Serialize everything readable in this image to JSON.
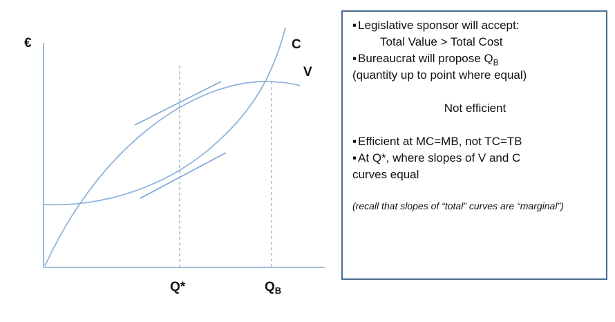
{
  "diagram": {
    "y_axis_label": "€",
    "cost_curve_label": "C",
    "value_curve_label": "V",
    "q_star_label": "Q*",
    "qb_label_main": "Q",
    "qb_label_sub": "B"
  },
  "panel": {
    "line1": "Legislative sponsor will accept:",
    "line2": "Total Value > Total Cost",
    "line3_prefix": "Bureaucrat will propose Q",
    "line3_sub": "B",
    "line4": "(quantity up to point where equal)",
    "line5": "Not efficient",
    "line6": "Efficient at MC=MB, not TC=TB",
    "line7": "At Q*, where slopes of V and C",
    "line8": "curves equal",
    "note": "(recall that slopes of “total” curves are “marginal”)"
  }
}
